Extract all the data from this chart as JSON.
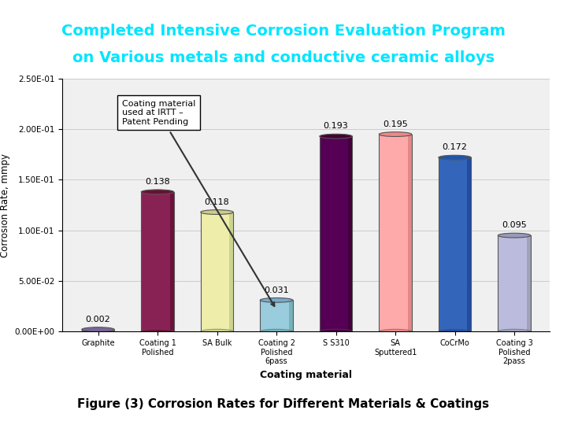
{
  "title_line1": "Completed Intensive Corrosion Evaluation Program",
  "title_line2": "on Various metals and conductive ceramic alloys",
  "title_bg": "#001a4d",
  "title_color": "#00e5ff",
  "categories": [
    "Graphite",
    "Coating 1\nPolished",
    "SA Bulk",
    "Coating 2\nPolished\n6pass",
    "S S310",
    "SA\nSputtered1",
    "CoCrMo",
    "Coating 3\nPolished\n2pass"
  ],
  "values": [
    0.002,
    0.138,
    0.118,
    0.031,
    0.193,
    0.195,
    0.172,
    0.095
  ],
  "bar_colors": [
    "#9988bb",
    "#882255",
    "#eeeeaa",
    "#99ccdd",
    "#550055",
    "#ffaaaa",
    "#3366bb",
    "#bbbbdd"
  ],
  "bar_top_colors": [
    "#776699",
    "#661133",
    "#cccc88",
    "#77aacc",
    "#440033",
    "#ee8888",
    "#2255aa",
    "#9999bb"
  ],
  "bar_dark_colors": [
    "#665588",
    "#550022",
    "#aabb77",
    "#559999",
    "#330022",
    "#cc6666",
    "#113388",
    "#888899"
  ],
  "xlabel": "Coating material",
  "ylabel": "Corrosion Rate, mmpy",
  "ylim": [
    0,
    0.25
  ],
  "yticks": [
    0.0,
    0.05,
    0.1,
    0.15,
    0.2,
    0.25
  ],
  "ytick_labels": [
    "0.00E+00",
    "5.00E-02",
    "1.00E-01",
    "1.50E-01",
    "2.00E-01",
    "2.50E-01"
  ],
  "annotation_text": "Coating material\nused at IRTT –\nPatent Pending",
  "figure_caption": "Figure (3) Corrosion Rates for Different Materials & Coatings",
  "bg_color": "#ffffff",
  "chart_bg": "#f0f0f0",
  "floor_color": "#aaaaaa",
  "grid_color": "#cccccc"
}
